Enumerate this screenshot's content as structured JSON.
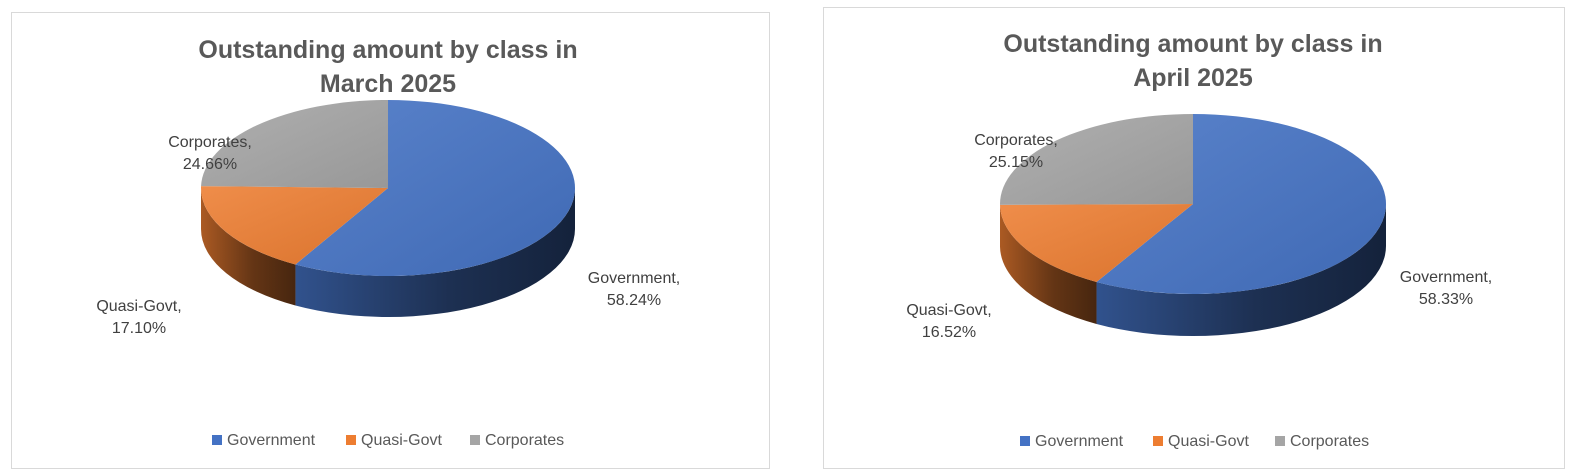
{
  "chart_data": [
    {
      "type": "pie",
      "title_lines": [
        "Outstanding amount by class in",
        "March 2025"
      ],
      "categories": [
        "Government",
        "Quasi-Govt",
        "Corporates"
      ],
      "values": [
        58.24,
        17.1,
        24.66
      ],
      "value_labels": [
        "58.24%",
        "17.10%",
        "24.66%"
      ],
      "colors": [
        "#4472c4",
        "#ed7d31",
        "#a5a5a5"
      ],
      "legend_position": "bottom",
      "style": "3d"
    },
    {
      "type": "pie",
      "title_lines": [
        "Outstanding amount by class in",
        "April 2025"
      ],
      "categories": [
        "Government",
        "Quasi-Govt",
        "Corporates"
      ],
      "values": [
        58.33,
        16.52,
        25.15
      ],
      "value_labels": [
        "58.33%",
        "16.52%",
        "25.15%"
      ],
      "colors": [
        "#4472c4",
        "#ed7d31",
        "#a5a5a5"
      ],
      "legend_position": "bottom",
      "style": "3d"
    }
  ]
}
